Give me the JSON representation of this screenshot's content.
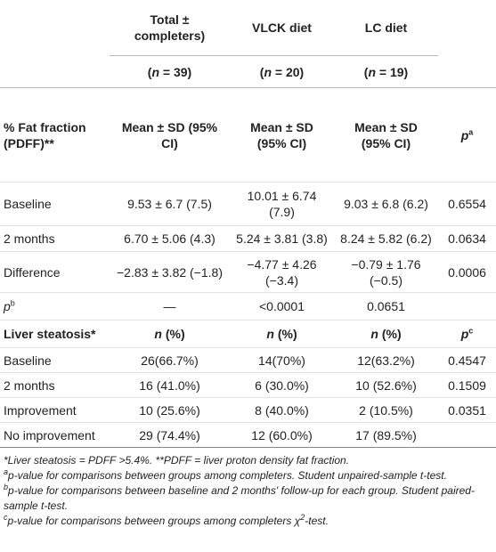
{
  "table": {
    "header": [
      [
        null,
        "Total ± completers)",
        "VLCK diet",
        "LC diet",
        null
      ],
      [
        null,
        [
          {
            "text": "("
          },
          {
            "i": "n"
          },
          {
            "text": " = 39)"
          }
        ],
        [
          {
            "text": "("
          },
          {
            "i": "n"
          },
          {
            "text": " = 20)"
          }
        ],
        [
          {
            "text": "("
          },
          {
            "i": "n"
          },
          {
            "text": " = 19)"
          }
        ],
        null
      ],
      [
        "% Fat fraction (PDFF)**",
        "Mean ± SD (95% CI)",
        "Mean ± SD (95% CI)",
        "Mean ± SD (95% CI)",
        [
          {
            "i": "p"
          },
          {
            "sup": "a"
          }
        ]
      ]
    ],
    "pdff_rows": [
      [
        "Baseline",
        "9.53 ± 6.7 (7.5)",
        "10.01 ± 6.74 (7.9)",
        "9.03 ± 6.8 (6.2)",
        "0.6554"
      ],
      [
        "2 months",
        "6.70 ± 5.06 (4.3)",
        "5.24 ± 3.81 (3.8)",
        "8.24 ± 5.82 (6.2)",
        "0.0634"
      ],
      [
        "Difference",
        "−2.83 ± 3.82 (−1.8)",
        "−4.77 ± 4.26 (−3.4)",
        "−0.79 ± 1.76 (−0.5)",
        "0.0006"
      ],
      [
        [
          {
            "i": "p"
          },
          {
            "sup": "b"
          }
        ],
        "—",
        "<0.0001",
        "0.0651",
        null
      ]
    ],
    "steatosis_header": [
      "Liver steatosis*",
      [
        {
          "i": "n"
        },
        {
          "text": " (%)"
        }
      ],
      [
        {
          "i": "n"
        },
        {
          "text": " (%)"
        }
      ],
      [
        {
          "i": "n"
        },
        {
          "text": " (%)"
        }
      ],
      [
        {
          "i": "p"
        },
        {
          "sup": "c"
        }
      ]
    ],
    "steatosis_rows": [
      [
        "Baseline",
        "26(66.7%)",
        "14(70%)",
        "12(63.2%)",
        "0.4547"
      ],
      [
        "2 months",
        "16 (41.0%)",
        "6 (30.0%)",
        "10 (52.6%)",
        "0.1509"
      ],
      [
        "Improvement",
        "10 (25.6%)",
        "8 (40.0%)",
        "2 (10.5%)",
        "0.0351"
      ],
      [
        "No improvement",
        "29 (74.4%)",
        "12 (60.0%)",
        "17 (89.5%)",
        null
      ]
    ]
  },
  "footnotes": [
    [
      {
        "text": "*Liver steatosis = PDFF >5.4%. **PDFF = liver proton density fat fraction."
      }
    ],
    [
      {
        "sup": "a"
      },
      {
        "text": "p-value for comparisons between groups among completers. Student unpaired-sample t-test."
      }
    ],
    [
      {
        "sup": "b"
      },
      {
        "text": "p-value for comparisons between baseline and 2 months' follow-up for each group. Student paired-sample t-test."
      }
    ],
    [
      {
        "sup": "c"
      },
      {
        "text": "p-value for comparisons between groups among completers χ"
      },
      {
        "sup": "2"
      },
      {
        "text": "-test."
      }
    ]
  ]
}
